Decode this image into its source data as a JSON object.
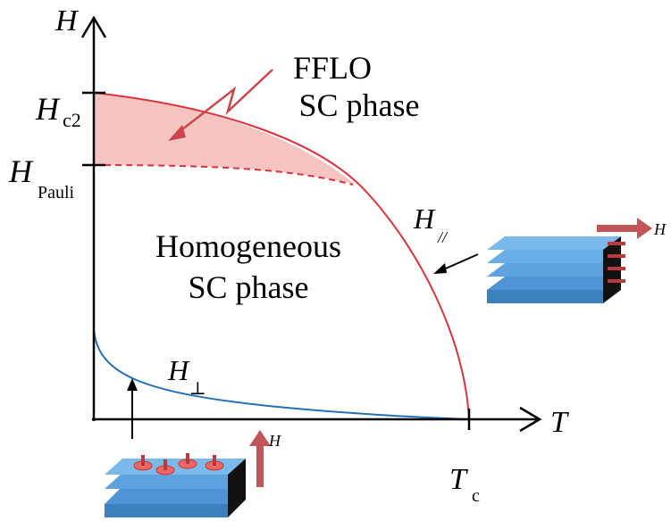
{
  "axes": {
    "y_label": "H",
    "x_label": "T"
  },
  "ticks": {
    "hc2": {
      "main": "H",
      "sub": "c2"
    },
    "hpauli": {
      "main": "H",
      "sub": "Pauli"
    },
    "tc": {
      "main": "T",
      "sub": "c"
    }
  },
  "regions": {
    "fflo": [
      "FFLO",
      "SC phase"
    ],
    "homogeneous": [
      "Homogeneous",
      "SC phase"
    ]
  },
  "curves": {
    "parallel": {
      "main": "H",
      "sub": "//"
    },
    "perp": {
      "main": "H",
      "sub": "⊥"
    }
  },
  "field_labels": {
    "parallel": "H",
    "perp": "H"
  }
}
